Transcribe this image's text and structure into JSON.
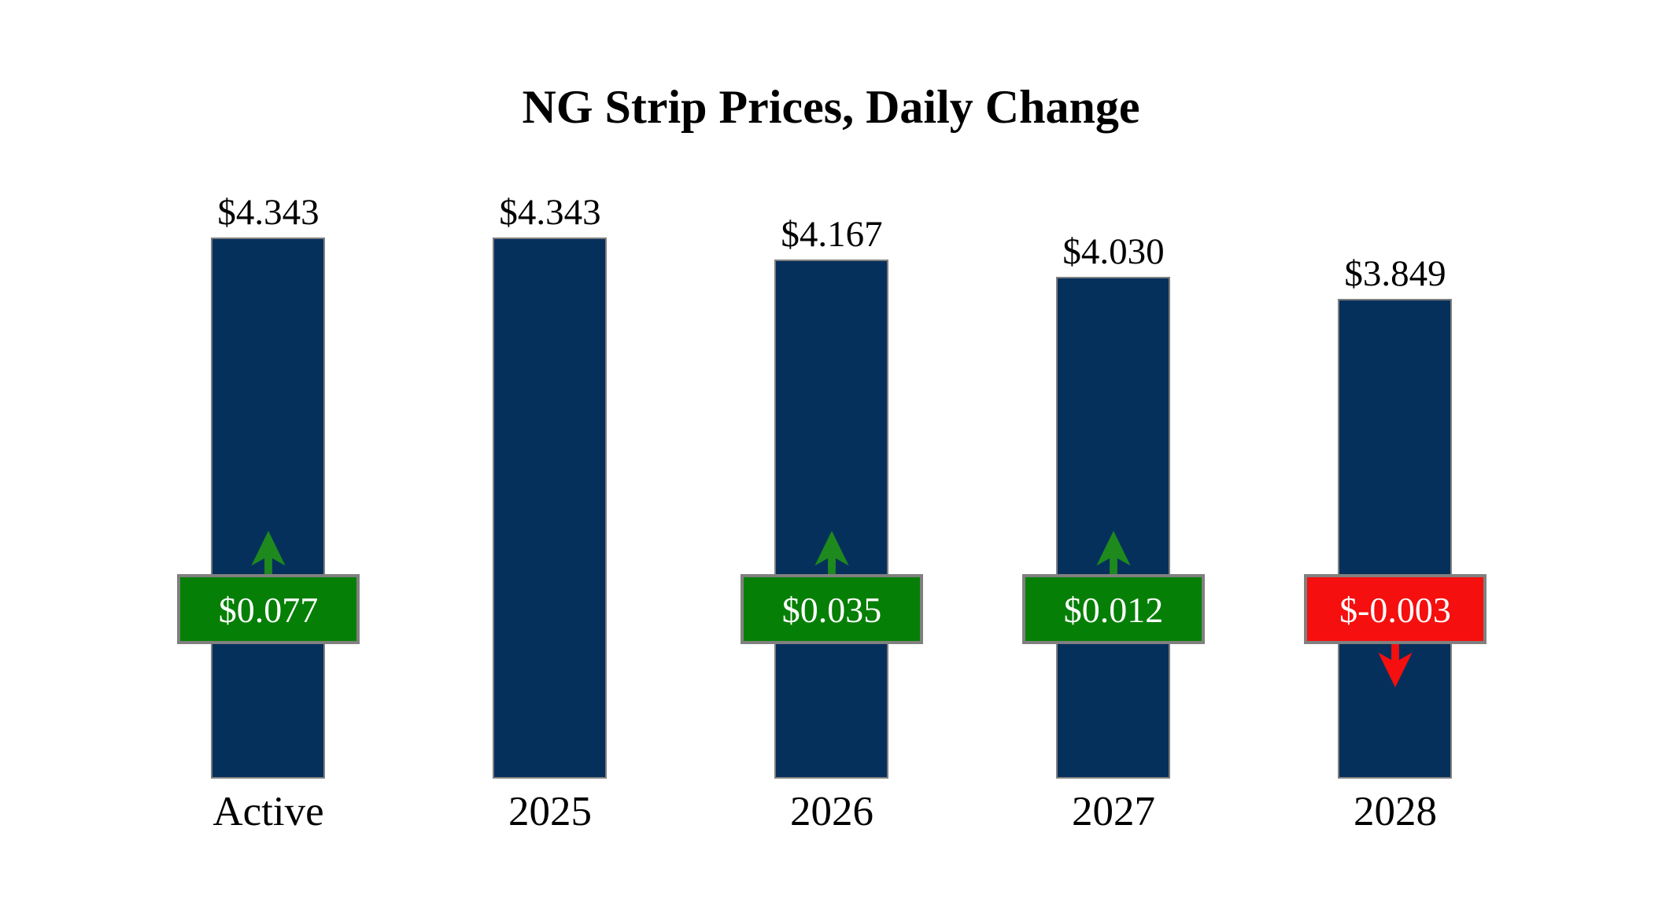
{
  "chart_data": {
    "type": "bar",
    "title": "NG Strip Prices, Daily Change",
    "categories": [
      "Active",
      "2025",
      "2026",
      "2027",
      "2028"
    ],
    "values": [
      4.343,
      4.343,
      4.167,
      4.03,
      3.849
    ],
    "value_labels": [
      "$4.343",
      "$4.343",
      "$4.167",
      "$4.030",
      "$3.849"
    ],
    "changes": [
      0.077,
      null,
      0.035,
      0.012,
      -0.003
    ],
    "change_labels": [
      "$0.077",
      null,
      "$0.035",
      "$0.012",
      "$-0.003"
    ],
    "xlabel": "",
    "ylabel": "",
    "ylim": [
      0,
      4.6
    ],
    "axes_visible": false,
    "gridlines": false,
    "legend": "none",
    "annotations": {
      "up_arrow_meaning": "daily price increase",
      "down_arrow_meaning": "daily price decrease"
    },
    "colors": {
      "background": "#ffffff",
      "bar_fill": "#06305c",
      "bar_border": "#7f7f7f",
      "badge_up_fill": "#067f06",
      "badge_down_fill": "#f50f0f",
      "badge_border": "#808080",
      "badge_text": "#ffffff",
      "arrow_up": "#1e8a1e",
      "arrow_down": "#f50f0f",
      "title_text": "#000000",
      "label_text": "#000000"
    }
  }
}
